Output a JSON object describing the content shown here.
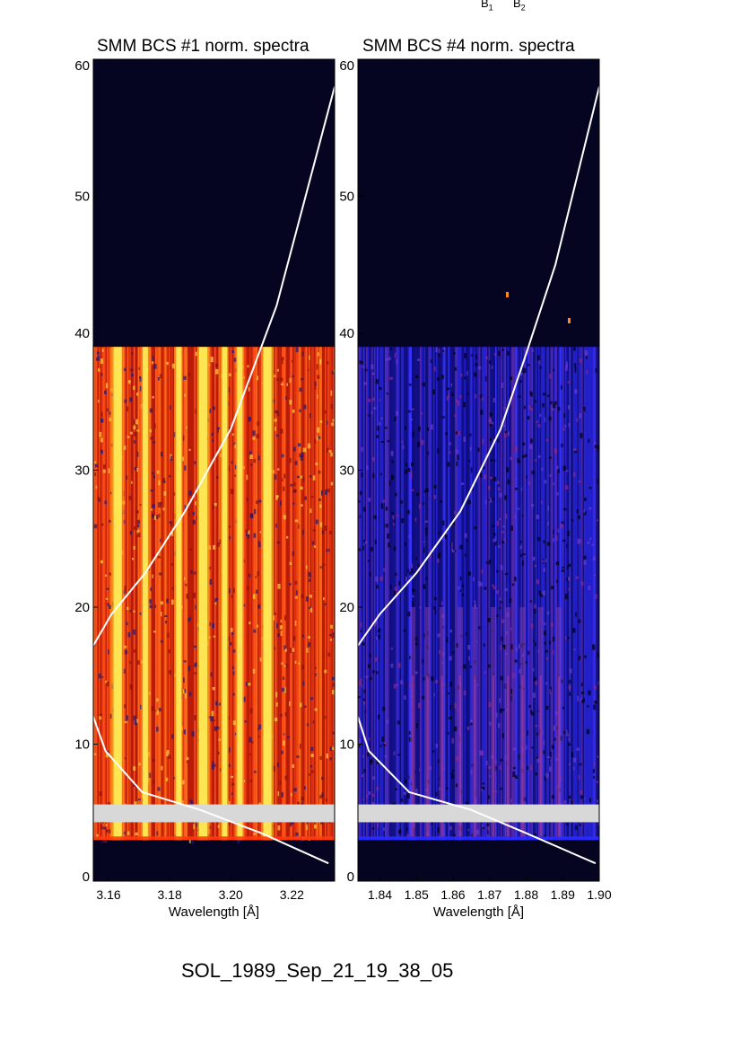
{
  "top_labels": {
    "b1": {
      "base": "B",
      "sub": "1"
    },
    "b2": {
      "base": "B",
      "sub": "2"
    }
  },
  "footer_title": "SOL_1989_Sep_21_19_38_05",
  "colors": {
    "background_dark": "#050522",
    "panel1_base": "#e0260a",
    "panel1_line_yellow": "#fff05a",
    "panel1_line_orange": "#f59a1a",
    "panel2_base": "#1c1ab8",
    "panel2_bright": "#3a36ff",
    "gap_band": "#d8d8d8",
    "overlay_curve": "#ffffff"
  },
  "chart_data": [
    {
      "type": "heatmap",
      "title": "SMM BCS #1 norm. spectra",
      "xlabel": "Wavelength [Å]",
      "ylabel": "",
      "xlim": [
        3.155,
        3.234
      ],
      "ylim": [
        0,
        60
      ],
      "xticks": [
        "3.16",
        "3.18",
        "3.20",
        "3.22"
      ],
      "xtick_values": [
        3.16,
        3.18,
        3.2,
        3.22
      ],
      "yticks": [
        "0",
        "10",
        "20",
        "30",
        "40",
        "50",
        "60"
      ],
      "ytick_values": [
        0,
        10,
        20,
        30,
        40,
        50,
        60
      ],
      "data_extent_y": [
        3,
        39
      ],
      "gap_y": [
        4.3,
        5.6
      ],
      "bright_lines_x": [
        3.163,
        3.172,
        3.183,
        3.191,
        3.198,
        3.203,
        3.212
      ],
      "overlay_curves": [
        {
          "x": [
            3.155,
            3.161,
            3.172,
            3.185,
            3.2,
            3.215,
            3.234
          ],
          "y": [
            17.2,
            19.5,
            22.5,
            27,
            33,
            42,
            58
          ]
        },
        {
          "x": [
            3.155,
            3.159,
            3.171,
            3.19,
            3.21,
            3.232
          ],
          "y": [
            12,
            9.5,
            6.5,
            5.2,
            3.5,
            1.3
          ]
        }
      ]
    },
    {
      "type": "heatmap",
      "title": "SMM BCS #4 norm. spectra",
      "xlabel": "Wavelength [Å]",
      "ylabel": "",
      "xlim": [
        1.834,
        1.9
      ],
      "ylim": [
        0,
        60
      ],
      "xticks": [
        "1.84",
        "1.85",
        "1.86",
        "1.87",
        "1.88",
        "1.89",
        "1.90"
      ],
      "xtick_values": [
        1.84,
        1.85,
        1.86,
        1.87,
        1.88,
        1.89,
        1.9
      ],
      "yticks": [
        "0",
        "10",
        "20",
        "30",
        "40",
        "50",
        "60"
      ],
      "ytick_values": [
        0,
        10,
        20,
        30,
        40,
        50,
        60
      ],
      "data_extent_y": [
        3,
        39
      ],
      "gap_y": [
        4.3,
        5.6
      ],
      "bright_lines_x": [
        1.849,
        1.853,
        1.857,
        1.862,
        1.866,
        1.871,
        1.875,
        1.879,
        1.884,
        1.889
      ],
      "overlay_curves": [
        {
          "x": [
            1.834,
            1.84,
            1.85,
            1.862,
            1.873,
            1.88,
            1.888,
            1.9
          ],
          "y": [
            17.2,
            19.5,
            22.5,
            27,
            33,
            38.5,
            45,
            58
          ]
        },
        {
          "x": [
            1.834,
            1.837,
            1.848,
            1.865,
            1.88,
            1.899
          ],
          "y": [
            12,
            9.5,
            6.5,
            5.2,
            3.5,
            1.3
          ]
        }
      ]
    }
  ]
}
